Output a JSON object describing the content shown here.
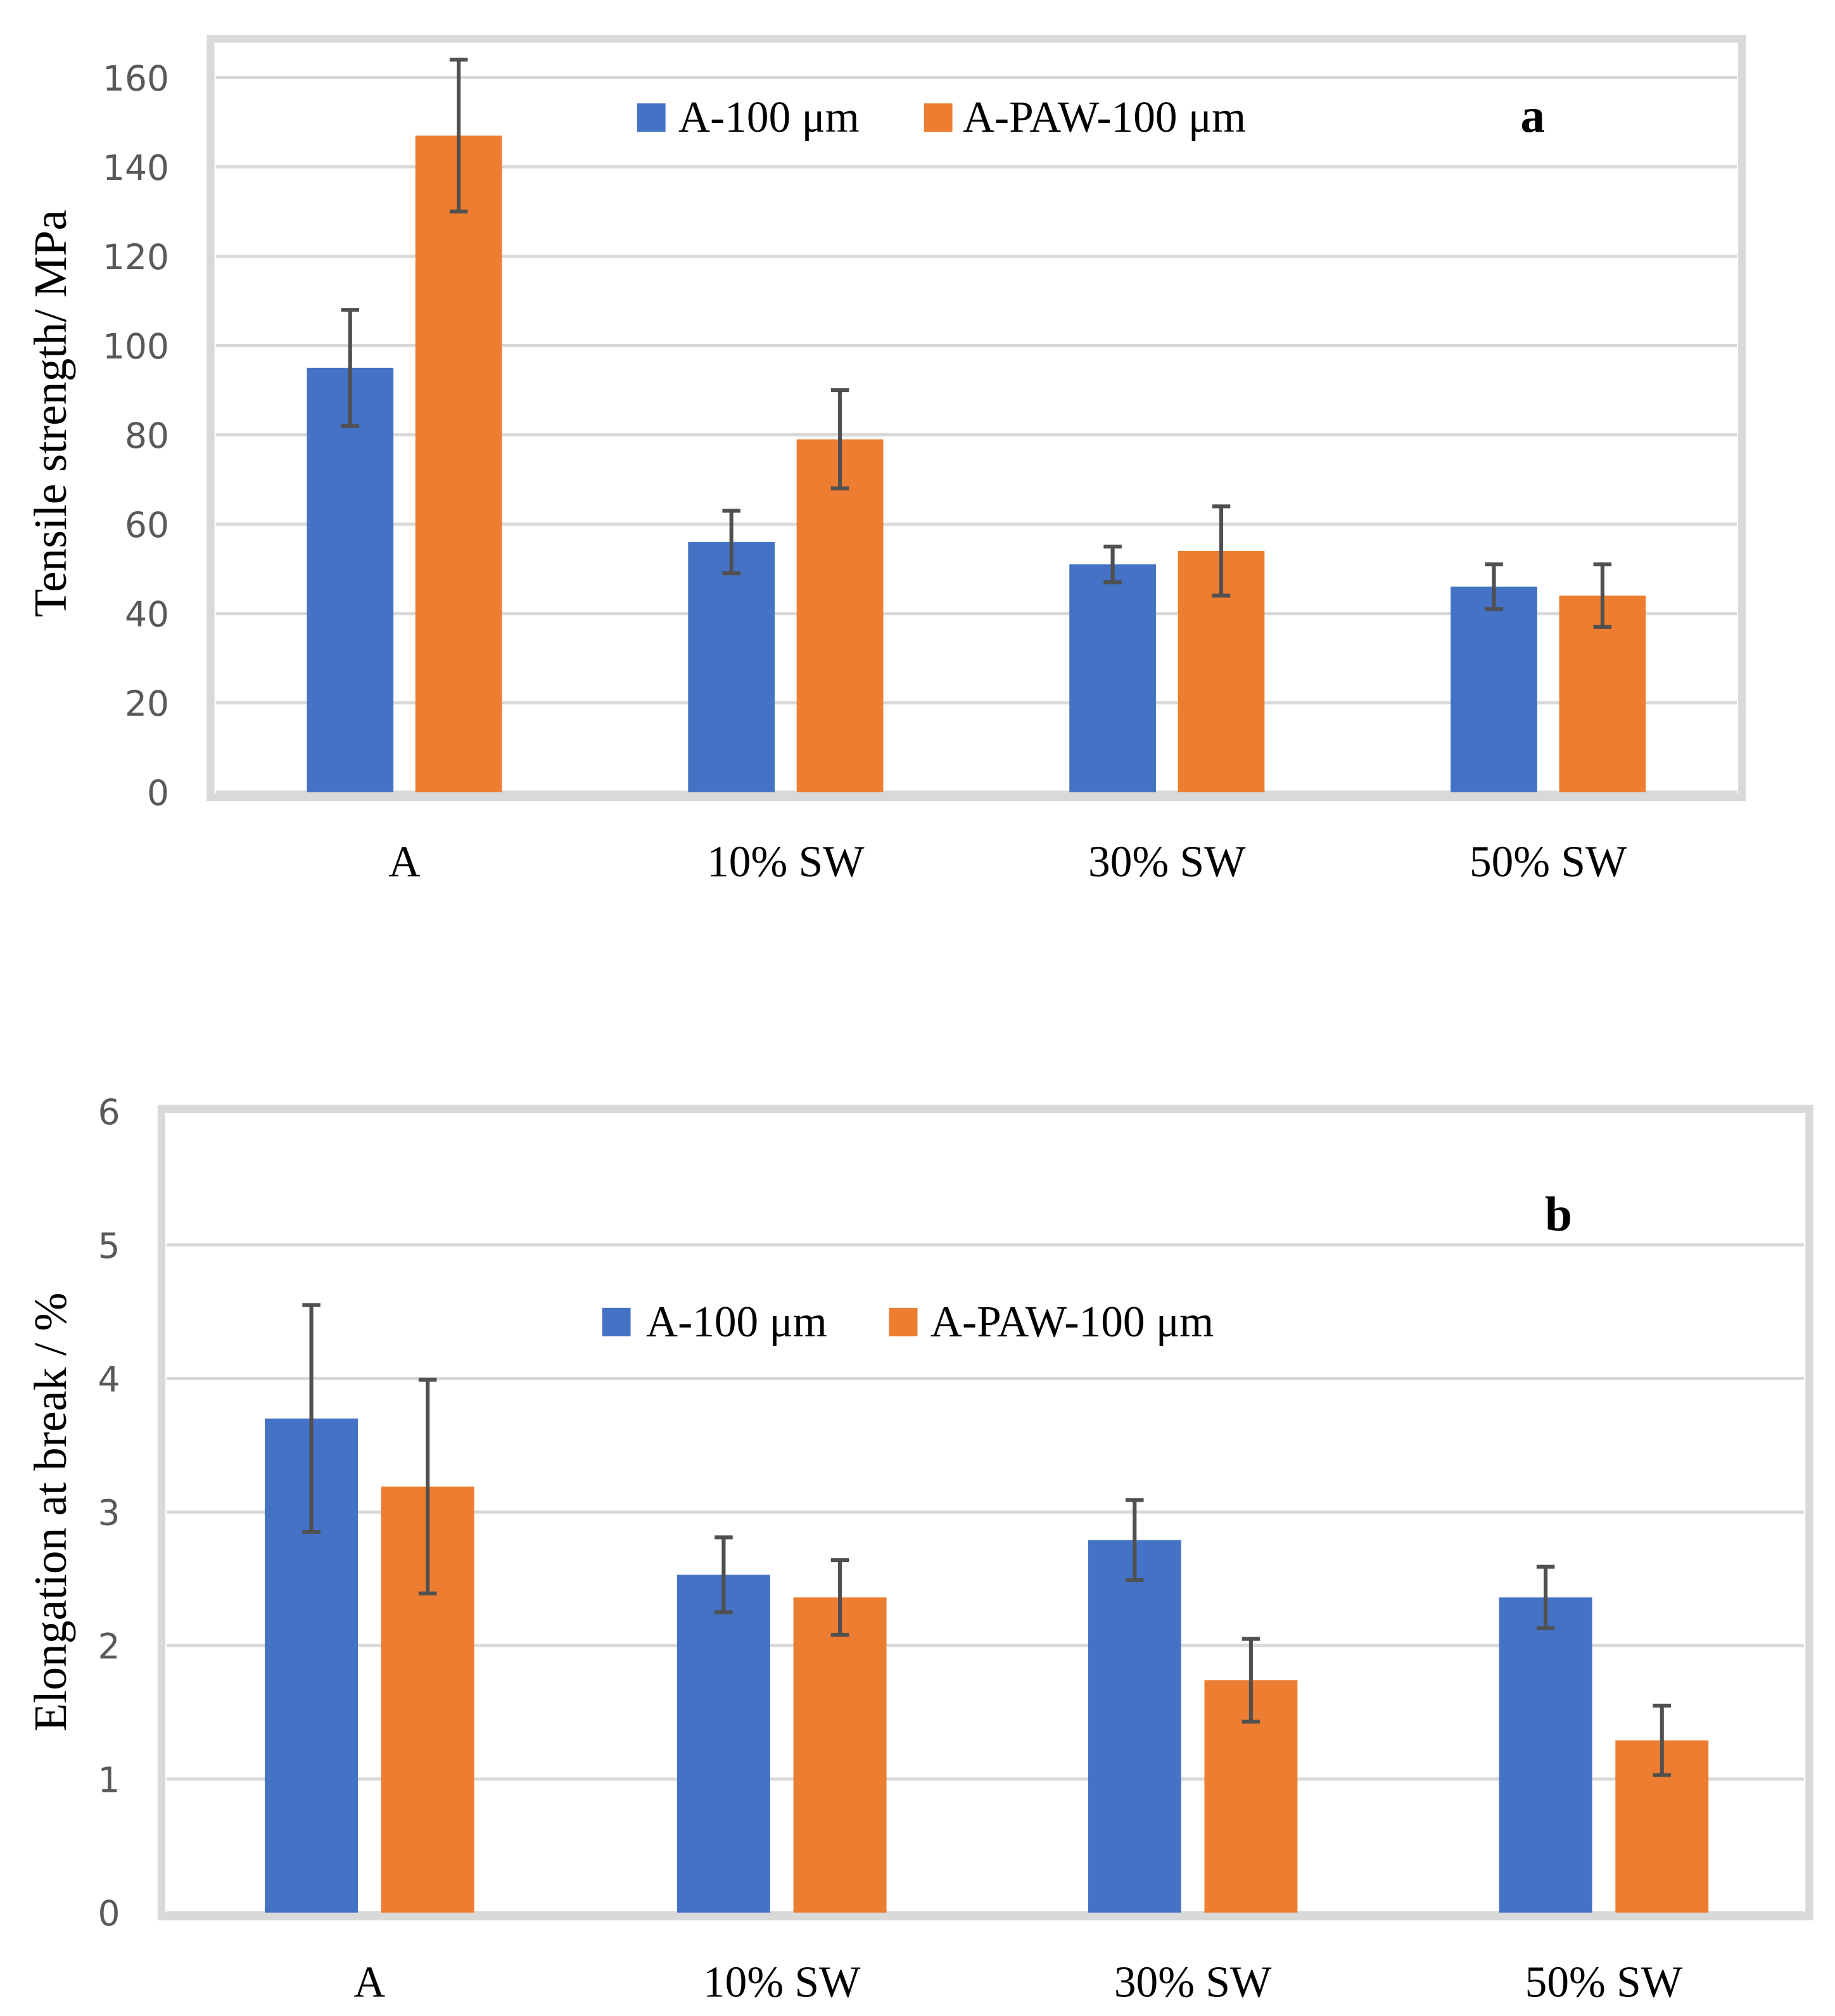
{
  "chart_data": [
    {
      "type": "bar",
      "panel_label": "a",
      "title": "",
      "xlabel": "",
      "ylabel": "Tensile strength/ MPa",
      "ylim": [
        0,
        160
      ],
      "yticks": [
        "0",
        "20",
        "40",
        "60",
        "80",
        "100",
        "120",
        "140",
        "160"
      ],
      "grid": true,
      "legend_position": "top-center",
      "categories": [
        "A",
        "10% SW",
        "30% SW",
        "50% SW"
      ],
      "series": [
        {
          "name": "A-100 μm",
          "color": "#4472c4",
          "values": [
            95,
            56,
            51,
            46
          ],
          "errors": [
            13,
            7,
            4,
            5
          ]
        },
        {
          "name": "A-PAW-100 μm",
          "color": "#ed7d31",
          "values": [
            147,
            79,
            54,
            44
          ],
          "errors": [
            17,
            11,
            10,
            7
          ]
        }
      ]
    },
    {
      "type": "bar",
      "panel_label": "b",
      "title": "",
      "xlabel": "",
      "ylabel": "Elongation at break / %",
      "ylim": [
        0,
        6
      ],
      "yticks": [
        "0",
        "1",
        "2",
        "3",
        "4",
        "5",
        "6"
      ],
      "grid": true,
      "legend_position": "top-center",
      "categories": [
        "A",
        "10% SW",
        "30% SW",
        "50% SW"
      ],
      "series": [
        {
          "name": "A-100 μm",
          "color": "#4472c4",
          "values": [
            3.7,
            2.53,
            2.79,
            2.36
          ],
          "errors": [
            0.85,
            0.28,
            0.3,
            0.23
          ]
        },
        {
          "name": "A-PAW-100 μm",
          "color": "#ed7d31",
          "values": [
            3.19,
            2.36,
            1.74,
            1.29
          ],
          "errors": [
            0.8,
            0.28,
            0.31,
            0.26
          ]
        }
      ]
    }
  ]
}
